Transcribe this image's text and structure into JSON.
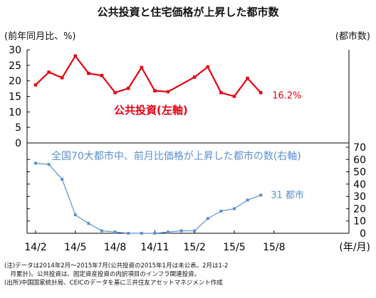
{
  "title": "公共投資と住宅価格が上昇した都市数",
  "left_unit": "(前年同月比、%)",
  "right_unit": "(都市数)",
  "x_unit": "(年/月)",
  "notes": [
    "(注)データは2014年2月〜2015年7月(公共投資の2015年1月は未公表。2月は1-2",
    "　月累計)。公共投資は、固定資産投資の内訳項目のインフラ関連投資。",
    "(出所)中国国家統計局、CEICのデータを基に三井住友アセットマネジメント作成"
  ],
  "colors": {
    "public": "#e60012",
    "cities": "#5b8fd0"
  },
  "chart_data": [
    {
      "type": "line",
      "panel": "top",
      "series": [
        {
          "name": "公共投資(左軸)",
          "x": [
            "14/2",
            "14/3",
            "14/4",
            "14/5",
            "14/6",
            "14/7",
            "14/8",
            "14/9",
            "14/10",
            "14/11",
            "14/12",
            "15/2",
            "15/3",
            "15/4",
            "15/5",
            "15/6",
            "15/7"
          ],
          "values": [
            18.7,
            22.8,
            21,
            28,
            22.4,
            21.7,
            16.2,
            17.6,
            24.3,
            16.8,
            16.5,
            21.2,
            24.5,
            16.2,
            15,
            20.8,
            16.2
          ]
        }
      ],
      "end_label": "16.2%",
      "yticks": [
        "0",
        "5",
        "10",
        "15",
        "20",
        "25",
        "30"
      ],
      "ylim": [
        0,
        30
      ]
    },
    {
      "type": "line",
      "panel": "bottom",
      "series": [
        {
          "name": "全国70大都市中、前月比価格が上昇した都市の数(右軸)",
          "x": [
            "14/2",
            "14/3",
            "14/4",
            "14/5",
            "14/6",
            "14/7",
            "14/8",
            "14/9",
            "14/10",
            "14/11",
            "14/12",
            "15/1",
            "15/2",
            "15/3",
            "15/4",
            "15/5",
            "15/6",
            "15/7"
          ],
          "values": [
            57,
            56,
            44,
            15,
            8,
            2,
            1,
            0,
            0,
            0,
            1,
            2,
            2,
            12,
            18,
            20,
            27,
            31
          ]
        }
      ],
      "end_label": "31 都市",
      "yticks": [
        "0",
        "10",
        "20",
        "30",
        "40",
        "50",
        "60",
        "70"
      ],
      "ylim": [
        0,
        70
      ]
    }
  ],
  "x_tick_labels": [
    "14/2",
    "14/5",
    "14/8",
    "14/11",
    "15/2",
    "15/5",
    "15/8"
  ]
}
